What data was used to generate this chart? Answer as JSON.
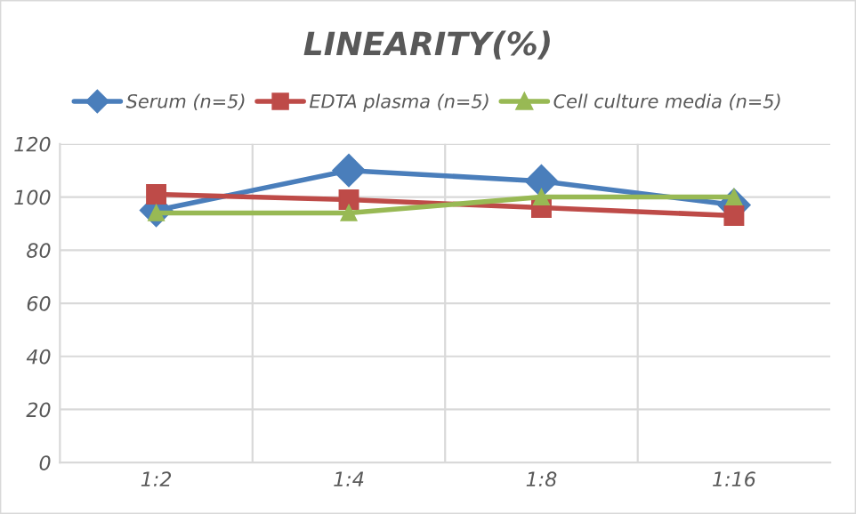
{
  "chart_data": {
    "type": "line",
    "title": "LINEARITY(%)",
    "categories": [
      "1:2",
      "1:4",
      "1:8",
      "1:16"
    ],
    "series": [
      {
        "name": "Serum (n=5)",
        "color": "#4a7ebb",
        "marker": "diamond",
        "values": [
          95,
          110,
          106,
          97
        ]
      },
      {
        "name": "EDTA plasma (n=5)",
        "color": "#be4b48",
        "marker": "square",
        "values": [
          101,
          99,
          96,
          93
        ]
      },
      {
        "name": "Cell culture media (n=5)",
        "color": "#98b954",
        "marker": "triangle",
        "values": [
          94,
          94,
          100,
          100
        ]
      }
    ],
    "ylim": [
      0,
      120
    ],
    "yticks": [
      0,
      20,
      40,
      60,
      80,
      100,
      120
    ],
    "grid": true,
    "legend": "top"
  }
}
